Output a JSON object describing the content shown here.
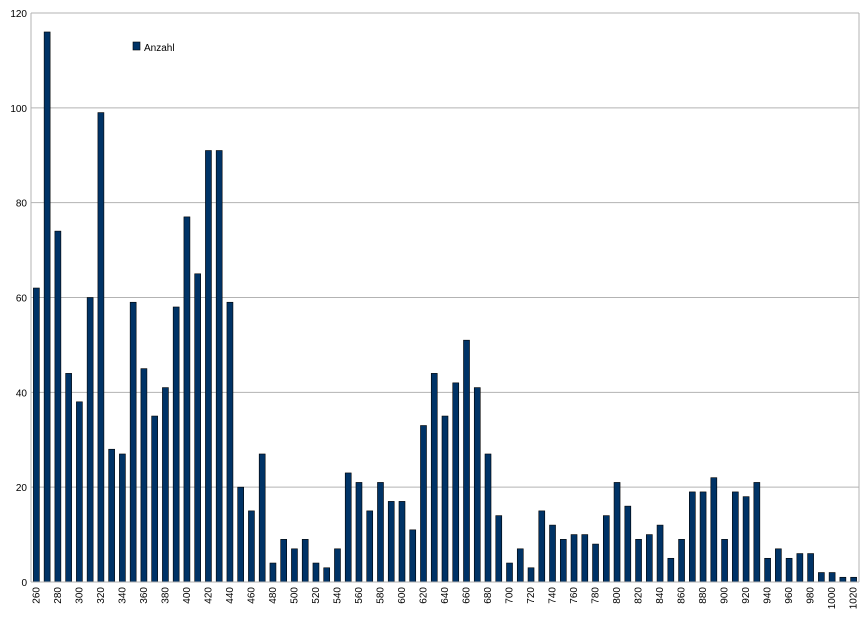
{
  "chart_data": {
    "type": "bar",
    "legend": {
      "label": "Anzahl",
      "placement": "top-left"
    },
    "series": [
      {
        "name": "Anzahl",
        "color": "#003366"
      }
    ],
    "ylim": [
      0,
      120
    ],
    "yticks": [
      0,
      20,
      40,
      60,
      80,
      100,
      120
    ],
    "grid": true,
    "categories": [
      260,
      270,
      280,
      290,
      300,
      310,
      320,
      330,
      340,
      350,
      360,
      370,
      380,
      390,
      400,
      410,
      420,
      430,
      440,
      450,
      460,
      470,
      480,
      490,
      500,
      510,
      520,
      530,
      540,
      550,
      560,
      570,
      580,
      590,
      600,
      610,
      620,
      630,
      640,
      650,
      660,
      670,
      680,
      690,
      700,
      710,
      720,
      730,
      740,
      750,
      760,
      770,
      780,
      790,
      800,
      810,
      820,
      830,
      840,
      850,
      860,
      870,
      880,
      890,
      900,
      910,
      920,
      930,
      940,
      950,
      960,
      970,
      980,
      990,
      1000,
      1010,
      1020
    ],
    "values": [
      62,
      116,
      74,
      44,
      38,
      60,
      99,
      28,
      27,
      59,
      45,
      35,
      41,
      58,
      77,
      65,
      91,
      91,
      59,
      20,
      15,
      27,
      4,
      9,
      7,
      9,
      4,
      3,
      7,
      23,
      21,
      15,
      21,
      17,
      17,
      11,
      33,
      44,
      35,
      42,
      51,
      41,
      27,
      14,
      4,
      7,
      3,
      15,
      12,
      9,
      10,
      10,
      8,
      14,
      21,
      16,
      9,
      10,
      12,
      5,
      9,
      19,
      19,
      22,
      9,
      19,
      18,
      21,
      5,
      7,
      5,
      6,
      6,
      2,
      2,
      1,
      1
    ],
    "xtick_labels": [
      "260",
      "280",
      "300",
      "320",
      "340",
      "360",
      "380",
      "400",
      "420",
      "440",
      "460",
      "480",
      "500",
      "520",
      "540",
      "560",
      "580",
      "600",
      "620",
      "640",
      "660",
      "680",
      "700",
      "720",
      "740",
      "760",
      "780",
      "800",
      "820",
      "840",
      "860",
      "880",
      "900",
      "920",
      "940",
      "960",
      "980",
      "1000",
      "1020"
    ]
  }
}
